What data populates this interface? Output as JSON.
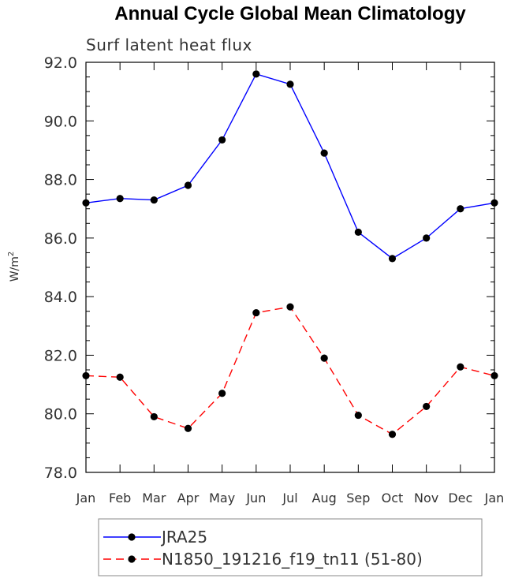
{
  "chart_data": {
    "type": "line",
    "title": "Annual Cycle Global Mean Climatology",
    "subtitle": "Surf latent heat flux",
    "ylabel": "W/m",
    "ylabel_superscript": "2",
    "ylim": [
      78.0,
      92.0
    ],
    "yticks": [
      "78.0",
      "80.0",
      "82.0",
      "84.0",
      "86.0",
      "88.0",
      "90.0",
      "92.0"
    ],
    "categories": [
      "Jan",
      "Feb",
      "Mar",
      "Apr",
      "May",
      "Jun",
      "Jul",
      "Aug",
      "Sep",
      "Oct",
      "Nov",
      "Dec",
      "Jan"
    ],
    "series": [
      {
        "name": "JRA25",
        "color": "#0000ff",
        "dash": "solid",
        "values": [
          87.2,
          87.35,
          87.3,
          87.8,
          89.35,
          91.6,
          91.25,
          88.9,
          86.2,
          85.3,
          86.0,
          87.0,
          87.2
        ]
      },
      {
        "name": "N1850_191216_f19_tn11 (51-80)",
        "color": "#ff0000",
        "dash": "dashed",
        "values": [
          81.3,
          81.25,
          79.9,
          79.5,
          80.7,
          83.45,
          83.65,
          81.9,
          79.95,
          79.3,
          80.25,
          81.6,
          81.3
        ]
      }
    ]
  }
}
